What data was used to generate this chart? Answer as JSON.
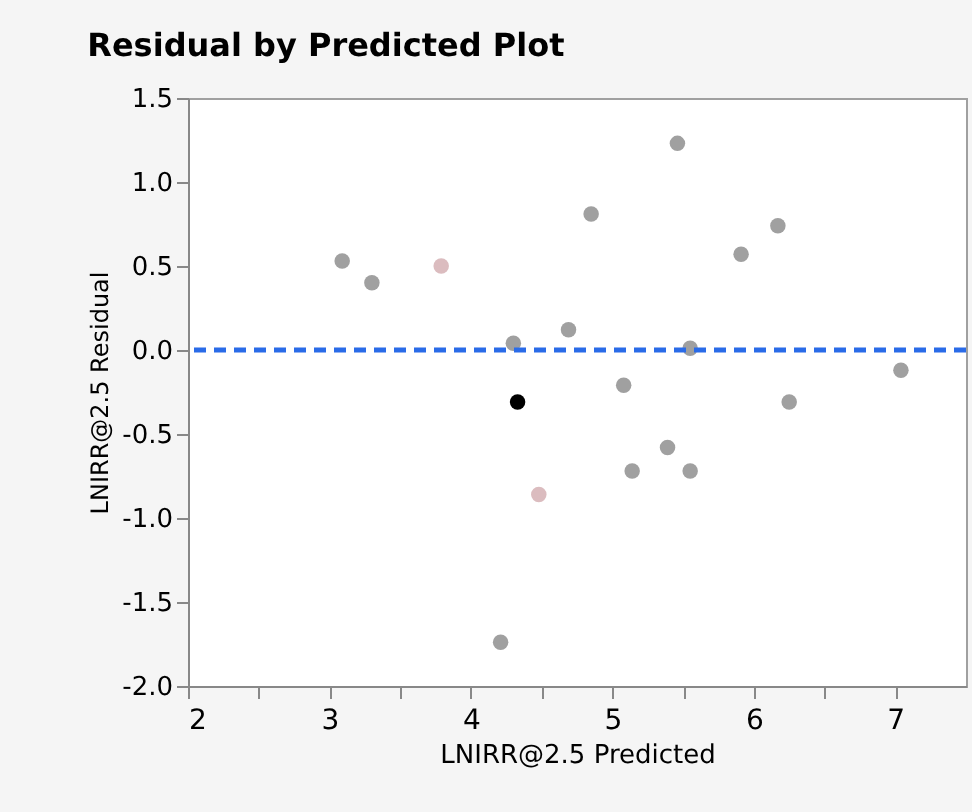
{
  "chart_data": {
    "type": "scatter",
    "title": "Residual by Predicted Plot",
    "xlabel": "LNIRR@2.5 Predicted",
    "ylabel": "LNIRR@2.5 Residual",
    "x": [
      3.09,
      3.3,
      3.79,
      4.3,
      4.69,
      4.85,
      5.46,
      5.55,
      5.91,
      6.17,
      7.04,
      4.33,
      5.08,
      6.25,
      5.39,
      5.14,
      5.55,
      4.48,
      4.21
    ],
    "values": [
      0.53,
      0.4,
      0.5,
      0.04,
      0.12,
      0.81,
      1.23,
      0.01,
      0.57,
      0.74,
      -0.12,
      -0.31,
      -0.21,
      -0.31,
      -0.58,
      -0.72,
      -0.72,
      -0.86,
      -1.74
    ],
    "colors": [
      "#a0a0a0",
      "#a0a0a0",
      "#dbbcbf",
      "#a0a0a0",
      "#a0a0a0",
      "#a0a0a0",
      "#a0a0a0",
      "#a0a0a0",
      "#a0a0a0",
      "#a0a0a0",
      "#a0a0a0",
      "#000000",
      "#a0a0a0",
      "#a0a0a0",
      "#a0a0a0",
      "#a0a0a0",
      "#a0a0a0",
      "#dbbcbf",
      "#a0a0a0"
    ],
    "marker": "circle",
    "xlim": [
      2,
      7.5
    ],
    "xticks": [
      2,
      {
        "value": 2.5,
        "label": null
      },
      3,
      {
        "value": 3.5,
        "label": null
      },
      4,
      {
        "value": 4.5,
        "label": null
      },
      5,
      {
        "value": 5.5,
        "label": null
      },
      6,
      {
        "value": 6.5,
        "label": null
      },
      7
    ],
    "ylim": [
      -2,
      1.5
    ],
    "yticks": [
      {
        "value": -2,
        "label": "-2.0"
      },
      -1.5,
      {
        "value": -1,
        "label": "-1.0"
      },
      -0.5,
      {
        "value": 0,
        "label": "0.0"
      },
      0.5,
      {
        "value": 1,
        "label": "1.0"
      },
      1.5
    ],
    "ref_lines": [
      {
        "axis": "y",
        "value": 0,
        "color": "#2a6be8",
        "line_style": "dashed"
      }
    ],
    "grid": false
  }
}
